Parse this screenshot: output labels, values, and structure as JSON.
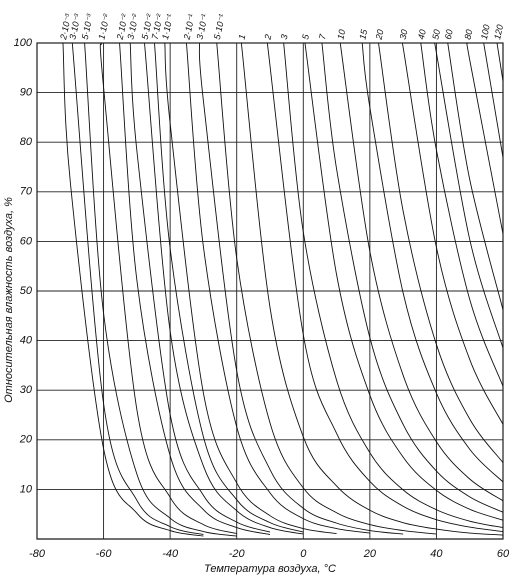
{
  "chart_data": {
    "type": "line",
    "x_label": "Температура воздуха, °С",
    "y_label": "Относительная влажность воздуха, %",
    "xlim": [
      -80,
      60
    ],
    "xticks": [
      -80,
      -60,
      -40,
      -20,
      0,
      20,
      40,
      60
    ],
    "ylim": [
      0,
      100
    ],
    "yticks": [
      10,
      20,
      30,
      40,
      50,
      60,
      70,
      80,
      90,
      100
    ],
    "grid": true,
    "color": "#111",
    "series": [
      {
        "name": "2·10⁻³",
        "x": [
          -72.2,
          -70,
          -60,
          -50,
          -40,
          -30
        ],
        "values": [
          100,
          72,
          18.2,
          5.2,
          1.7,
          0.6
        ]
      },
      {
        "name": "3·10⁻³",
        "x": [
          -69.4,
          -60,
          -50,
          -40,
          -30
        ],
        "values": [
          100,
          27.3,
          7.8,
          2.5,
          0.9
        ]
      },
      {
        "name": "5·10⁻³",
        "x": [
          -65.7,
          -60,
          -50,
          -40,
          -30,
          -20
        ],
        "values": [
          100,
          45.5,
          13.1,
          4.2,
          1.5,
          0.6
        ]
      },
      {
        "name": "1·10⁻²",
        "x": [
          -60.7,
          -60,
          -50,
          -40,
          -30,
          -20
        ],
        "values": [
          100,
          91.1,
          26.1,
          8.4,
          2.9,
          1.1
        ]
      },
      {
        "name": "2·10⁻²",
        "x": [
          -55.2,
          -50,
          -40,
          -30,
          -20,
          -10
        ],
        "values": [
          100,
          52.2,
          16.8,
          5.9,
          2.3,
          0.9
        ]
      },
      {
        "name": "3·10⁻²",
        "x": [
          -52,
          -50,
          -40,
          -30,
          -20,
          -10
        ],
        "values": [
          100,
          78.3,
          25.1,
          8.8,
          3.4,
          1.4
        ]
      },
      {
        "name": "5·10⁻²",
        "x": [
          -47.7,
          -40,
          -30,
          -20,
          -10,
          0
        ],
        "values": [
          100,
          41.9,
          14.7,
          5.7,
          2.3,
          1
        ]
      },
      {
        "name": "7·10⁻²",
        "x": [
          -44.7,
          -40,
          -30,
          -20,
          -10,
          0
        ],
        "values": [
          100,
          58.6,
          20.6,
          7.9,
          3.3,
          1.4
        ]
      },
      {
        "name": "1·10⁻¹",
        "x": [
          -41.6,
          -40,
          -30,
          -20,
          -10,
          0,
          10
        ],
        "values": [
          100,
          83.8,
          29.4,
          11.3,
          4.7,
          2.1,
          1.1
        ]
      },
      {
        "name": "2·10⁻¹",
        "x": [
          -35.1,
          -30,
          -20,
          -10,
          0,
          10,
          20
        ],
        "values": [
          100,
          58.9,
          22.6,
          9.3,
          4.1,
          2.1,
          1.2
        ]
      },
      {
        "name": "3·10⁻¹",
        "x": [
          -31.2,
          -30,
          -20,
          -10,
          0,
          10,
          20,
          30
        ],
        "values": [
          100,
          88.3,
          33.9,
          14,
          6.2,
          3.2,
          1.7,
          1
        ]
      },
      {
        "name": "5·10⁻¹",
        "x": [
          -26,
          -20,
          -10,
          0,
          10,
          20,
          30,
          40
        ],
        "values": [
          100,
          56.6,
          23.4,
          10.3,
          5.3,
          2.9,
          1.7,
          1
        ]
      },
      {
        "name": "1",
        "x": [
          -18.6,
          -10,
          0,
          10,
          20,
          30,
          40,
          50,
          60
        ],
        "values": [
          100,
          46.7,
          20.6,
          10.7,
          5.8,
          3.3,
          2,
          1.2,
          0.8
        ]
      },
      {
        "name": "2",
        "x": [
          -10.8,
          0,
          10,
          20,
          30,
          40,
          50,
          60
        ],
        "values": [
          100,
          41.2,
          21.3,
          11.6,
          6.6,
          3.9,
          2.4,
          1.5
        ]
      },
      {
        "name": "3",
        "x": [
          -5.9,
          0,
          10,
          20,
          30,
          40,
          50,
          60
        ],
        "values": [
          100,
          61.9,
          32,
          17.4,
          9.9,
          5.9,
          3.6,
          2.3
        ]
      },
      {
        "name": "5",
        "x": [
          0.5,
          10,
          20,
          30,
          40,
          50,
          60
        ],
        "values": [
          100,
          53.3,
          29,
          16.5,
          9.8,
          6,
          3.8
        ]
      },
      {
        "name": "7",
        "x": [
          5.6,
          10,
          20,
          30,
          40,
          50,
          60
        ],
        "values": [
          100,
          74.6,
          40.6,
          23.1,
          13.7,
          8.5,
          5.4
        ]
      },
      {
        "name": "10",
        "x": [
          11.1,
          20,
          30,
          40,
          50,
          60
        ],
        "values": [
          100,
          58,
          33,
          19.6,
          12.1,
          7.7
        ]
      },
      {
        "name": "15",
        "x": [
          17.7,
          20,
          30,
          40,
          50,
          60
        ],
        "values": [
          100,
          87,
          49.6,
          29.4,
          18.1,
          11.5
        ]
      },
      {
        "name": "20",
        "x": [
          22.6,
          30,
          40,
          50,
          60
        ],
        "values": [
          100,
          66.1,
          39.2,
          24.2,
          15.4
        ]
      },
      {
        "name": "30",
        "x": [
          29.8,
          30,
          40,
          50,
          60
        ],
        "values": [
          100,
          99.1,
          58.8,
          36.2,
          23.1
        ]
      },
      {
        "name": "40",
        "x": [
          35.3,
          40,
          50,
          60
        ],
        "values": [
          100,
          78.4,
          48.3,
          30.8
        ]
      },
      {
        "name": "50",
        "x": [
          39.6,
          40,
          50,
          60
        ],
        "values": [
          100,
          98,
          60.4,
          38.5
        ]
      },
      {
        "name": "60",
        "x": [
          43.4,
          50,
          60
        ],
        "values": [
          100,
          72.5,
          46.2
        ]
      },
      {
        "name": "80",
        "x": [
          49.3,
          50,
          60
        ],
        "values": [
          100,
          96.6,
          61.5
        ]
      },
      {
        "name": "100",
        "x": [
          54.2,
          60
        ],
        "values": [
          100,
          76.9
        ]
      },
      {
        "name": "120",
        "x": [
          58.2,
          60
        ],
        "values": [
          100,
          92.3
        ]
      }
    ]
  }
}
